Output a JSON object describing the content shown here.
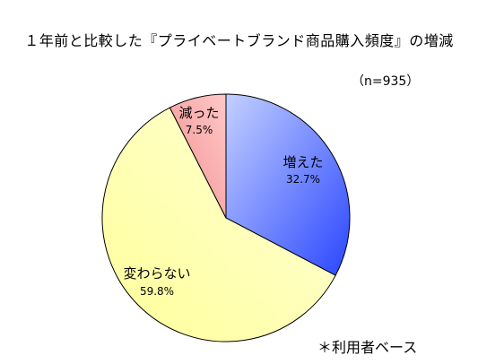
{
  "title": "１年前と比較した『プライベートブランド商品購入頻度』の増減",
  "sample_size": "（n=935）",
  "footnote": "＊利用者ベース",
  "colors": {
    "increased": "#4f6dfb",
    "same": "#ffffc0",
    "decreased": "#f6a4a4",
    "outline": "#000000"
  },
  "chart_data": {
    "type": "pie",
    "title": "１年前と比較した『プライベートブランド商品購入頻度』の増減",
    "slices": [
      {
        "label": "増えた",
        "value": 32.7,
        "display": "32.7%"
      },
      {
        "label": "変わらない",
        "value": 59.8,
        "display": "59.8%"
      },
      {
        "label": "減った",
        "value": 7.5,
        "display": "7.5%"
      }
    ],
    "start_angle": "12 o'clock",
    "direction": "clockwise",
    "legend": "none"
  }
}
